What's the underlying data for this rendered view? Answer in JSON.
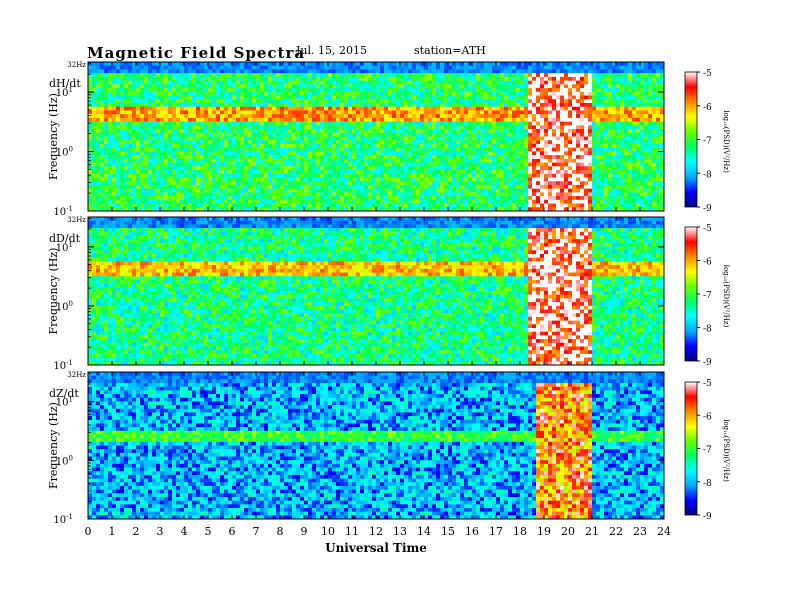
{
  "header": {
    "title": "Magnetic Field Spectra",
    "date": "Jul. 15, 2015",
    "station": "station=ATH"
  },
  "chart_data": {
    "type": "heatmap",
    "title": "Magnetic Field Spectra",
    "xlabel": "Universal Time",
    "ylabel": "Frequency (Hz)",
    "x_ticks": [
      "0",
      "1",
      "2",
      "3",
      "4",
      "5",
      "6",
      "7",
      "8",
      "9",
      "10",
      "11",
      "12",
      "13",
      "14",
      "15",
      "16",
      "17",
      "18",
      "19",
      "20",
      "21",
      "22",
      "23",
      "24"
    ],
    "xlim": [
      0,
      24
    ],
    "y_scale": "log",
    "y_ticks": [
      {
        "label_base": "10",
        "label_exp": "-1",
        "value": 0.1
      },
      {
        "label_base": "10",
        "label_exp": "0",
        "value": 1
      },
      {
        "label_base": "10",
        "label_exp": "1",
        "value": 10
      }
    ],
    "y_top_label": "32Hz",
    "ylim": [
      0.1,
      32
    ],
    "colorbar": {
      "label": "log₁₀(PSD)(V²/Hz)",
      "ticks": [
        "-5",
        "-6",
        "-7",
        "-8",
        "-9"
      ],
      "range": [
        -9,
        -5
      ],
      "colors": [
        "#000080",
        "#0000ff",
        "#00aaff",
        "#00ffff",
        "#00ff66",
        "#66ff00",
        "#ffff00",
        "#ff8800",
        "#ff0000",
        "#ffffff"
      ]
    },
    "panels": [
      {
        "name": "dH/dt",
        "background_level": -7.2,
        "band_hz": [
          3,
          6
        ],
        "band_level": -6.0,
        "active_interval_ut": [
          18.4,
          21.0
        ],
        "active_level": -5.2
      },
      {
        "name": "dD/dt",
        "background_level": -7.3,
        "band_hz": [
          3,
          6
        ],
        "band_level": -6.1,
        "active_interval_ut": [
          18.4,
          21.0
        ],
        "active_level": -5.2
      },
      {
        "name": "dZ/dt",
        "background_level": -8.0,
        "band_hz": [
          2,
          3
        ],
        "band_level": -7.0,
        "active_interval_ut": [
          18.7,
          21.0
        ],
        "active_level": -5.8
      }
    ]
  }
}
